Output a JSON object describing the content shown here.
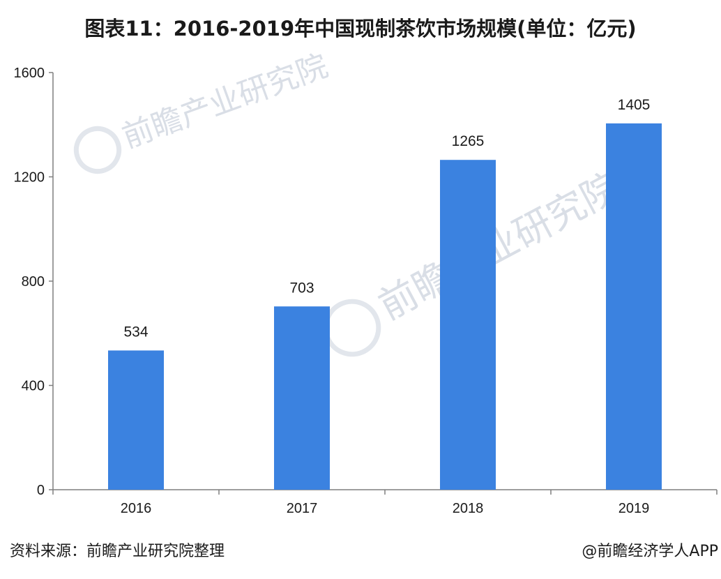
{
  "title": "图表11：2016-2019年中国现制茶饮市场规模(单位：亿元)",
  "source": "资料来源：前瞻产业研究院整理",
  "credit": "@前瞻经济学人APP",
  "watermark": {
    "brand": "前瞻产业研究院",
    "icon": "qianzhan-logo-icon"
  },
  "colors": {
    "bar": "#3b82e0",
    "axis": "#7f7f7f"
  },
  "chart_data": {
    "type": "bar",
    "title": "图表11：2016-2019年中国现制茶饮市场规模(单位：亿元)",
    "categories": [
      "2016",
      "2017",
      "2018",
      "2019"
    ],
    "values": [
      534,
      703,
      1265,
      1405
    ],
    "data_labels": [
      "534",
      "703",
      "1265",
      "1405"
    ],
    "ylim": [
      0,
      1600
    ],
    "yticks": [
      0,
      400,
      800,
      1200,
      1600
    ],
    "xlabel": "",
    "ylabel": "",
    "grid": false,
    "legend": "none"
  }
}
